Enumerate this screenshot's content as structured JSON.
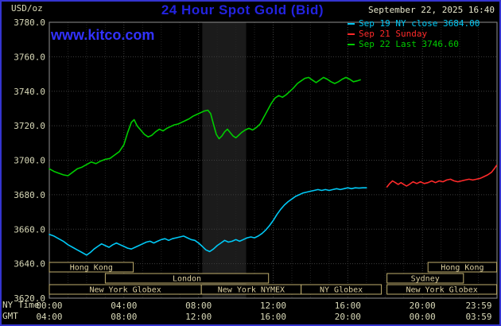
{
  "header": {
    "units_label": "USD/oz",
    "title": "24 Hour Spot Gold (Bid)",
    "datetime": "September 22, 2025 16:40",
    "watermark": "www.kitco.com"
  },
  "legend": {
    "items": [
      {
        "label": "Sep 19 NY close 3684.00",
        "color": "#00c8f5"
      },
      {
        "label": "Sep 21 Sunday",
        "color": "#ff2a2a"
      },
      {
        "label": "Sep 22 Last 3746.60",
        "color": "#00cc00"
      }
    ]
  },
  "axes": {
    "x_rows": [
      {
        "label": "NY Time",
        "ticks": [
          "00:00",
          "04:00",
          "08:00",
          "12:00",
          "16:00",
          "20:00",
          "23:59"
        ]
      },
      {
        "label": "GMT",
        "ticks": [
          "04:00",
          "08:00",
          "12:00",
          "16:00",
          "20:00",
          "00:00",
          "03:59"
        ]
      }
    ],
    "y_tick_labels": [
      "3780.0",
      "3760.0",
      "3740.0",
      "3720.0",
      "3700.0",
      "3680.0",
      "3660.0",
      "3640.0",
      "3620.0"
    ]
  },
  "chart_data": {
    "type": "line",
    "title": "24 Hour Spot Gold (Bid)",
    "ylabel": "USD/oz",
    "x_unit": "hours, NY time",
    "xlim": [
      0,
      24
    ],
    "ylim": [
      3620,
      3780
    ],
    "y_tick_step": 20,
    "x_tick_hours": [
      0,
      4,
      8,
      12,
      16,
      20,
      23.983
    ],
    "grid": true,
    "shaded_band_hours": [
      8.2,
      10.55
    ],
    "series": [
      {
        "name": "Sep 19 NY close 3684.00",
        "color": "#00c8f5",
        "points": [
          [
            0,
            3657
          ],
          [
            0.25,
            3656
          ],
          [
            0.5,
            3654.5
          ],
          [
            0.75,
            3653
          ],
          [
            1,
            3651
          ],
          [
            1.25,
            3649.5
          ],
          [
            1.5,
            3648
          ],
          [
            1.75,
            3646.5
          ],
          [
            2,
            3645
          ],
          [
            2.2,
            3646.5
          ],
          [
            2.4,
            3648.5
          ],
          [
            2.6,
            3650
          ],
          [
            2.8,
            3651.5
          ],
          [
            3,
            3650.5
          ],
          [
            3.2,
            3649.5
          ],
          [
            3.4,
            3651
          ],
          [
            3.6,
            3652
          ],
          [
            3.8,
            3651
          ],
          [
            4,
            3650
          ],
          [
            4.2,
            3649
          ],
          [
            4.4,
            3648.5
          ],
          [
            4.6,
            3649.5
          ],
          [
            4.8,
            3650.5
          ],
          [
            5,
            3651.5
          ],
          [
            5.2,
            3652.5
          ],
          [
            5.4,
            3653
          ],
          [
            5.6,
            3652
          ],
          [
            5.8,
            3653
          ],
          [
            6,
            3654
          ],
          [
            6.2,
            3654.5
          ],
          [
            6.4,
            3653.5
          ],
          [
            6.6,
            3654.5
          ],
          [
            6.8,
            3655
          ],
          [
            7,
            3655.5
          ],
          [
            7.2,
            3656
          ],
          [
            7.4,
            3655
          ],
          [
            7.6,
            3654
          ],
          [
            7.8,
            3653.5
          ],
          [
            8,
            3652
          ],
          [
            8.2,
            3650
          ],
          [
            8.4,
            3648
          ],
          [
            8.6,
            3647
          ],
          [
            8.8,
            3648.5
          ],
          [
            9,
            3650.5
          ],
          [
            9.2,
            3652
          ],
          [
            9.4,
            3653.5
          ],
          [
            9.6,
            3652.5
          ],
          [
            9.8,
            3653
          ],
          [
            10,
            3654
          ],
          [
            10.2,
            3653
          ],
          [
            10.4,
            3654
          ],
          [
            10.6,
            3655
          ],
          [
            10.8,
            3655.5
          ],
          [
            11,
            3655
          ],
          [
            11.2,
            3656
          ],
          [
            11.4,
            3657.5
          ],
          [
            11.6,
            3659.5
          ],
          [
            11.8,
            3662
          ],
          [
            12,
            3665
          ],
          [
            12.2,
            3668.5
          ],
          [
            12.4,
            3671.5
          ],
          [
            12.6,
            3674
          ],
          [
            12.8,
            3676
          ],
          [
            13,
            3677.5
          ],
          [
            13.2,
            3679
          ],
          [
            13.4,
            3680
          ],
          [
            13.6,
            3681
          ],
          [
            13.8,
            3681.5
          ],
          [
            14,
            3682
          ],
          [
            14.2,
            3682.5
          ],
          [
            14.4,
            3683
          ],
          [
            14.6,
            3682.5
          ],
          [
            14.8,
            3683
          ],
          [
            15,
            3682.5
          ],
          [
            15.2,
            3683
          ],
          [
            15.4,
            3683.5
          ],
          [
            15.6,
            3683
          ],
          [
            15.8,
            3683.5
          ],
          [
            16,
            3684
          ],
          [
            16.2,
            3683.5
          ],
          [
            16.4,
            3684
          ],
          [
            16.6,
            3683.8
          ],
          [
            16.8,
            3684
          ],
          [
            17,
            3684
          ]
        ]
      },
      {
        "name": "Sep 21 Sunday",
        "color": "#ff2a2a",
        "points": [
          [
            18.1,
            3684.5
          ],
          [
            18.25,
            3686.5
          ],
          [
            18.4,
            3688
          ],
          [
            18.55,
            3687
          ],
          [
            18.7,
            3686
          ],
          [
            18.85,
            3687
          ],
          [
            19,
            3686
          ],
          [
            19.15,
            3685
          ],
          [
            19.3,
            3686
          ],
          [
            19.5,
            3687.5
          ],
          [
            19.7,
            3686.5
          ],
          [
            19.9,
            3687.5
          ],
          [
            20.1,
            3686.5
          ],
          [
            20.3,
            3687
          ],
          [
            20.5,
            3688
          ],
          [
            20.7,
            3687
          ],
          [
            20.9,
            3688
          ],
          [
            21.1,
            3687.5
          ],
          [
            21.3,
            3688.5
          ],
          [
            21.5,
            3689
          ],
          [
            21.7,
            3688
          ],
          [
            21.9,
            3687.5
          ],
          [
            22.1,
            3688
          ],
          [
            22.3,
            3688.5
          ],
          [
            22.5,
            3689
          ],
          [
            22.7,
            3688.5
          ],
          [
            22.9,
            3689
          ],
          [
            23.1,
            3689.5
          ],
          [
            23.3,
            3690.5
          ],
          [
            23.5,
            3691.5
          ],
          [
            23.7,
            3693
          ],
          [
            23.85,
            3695
          ],
          [
            23.98,
            3697
          ]
        ]
      },
      {
        "name": "Sep 22 Last 3746.60",
        "color": "#00cc00",
        "points": [
          [
            0,
            3695
          ],
          [
            0.25,
            3693.5
          ],
          [
            0.5,
            3692.5
          ],
          [
            0.75,
            3691.5
          ],
          [
            1,
            3691
          ],
          [
            1.25,
            3693
          ],
          [
            1.5,
            3695
          ],
          [
            1.75,
            3696
          ],
          [
            2,
            3697.5
          ],
          [
            2.25,
            3699
          ],
          [
            2.5,
            3698
          ],
          [
            2.75,
            3699.5
          ],
          [
            3,
            3700.5
          ],
          [
            3.25,
            3701
          ],
          [
            3.5,
            3703
          ],
          [
            3.75,
            3705
          ],
          [
            4,
            3709
          ],
          [
            4.2,
            3716
          ],
          [
            4.4,
            3722
          ],
          [
            4.55,
            3723.5
          ],
          [
            4.7,
            3720
          ],
          [
            4.9,
            3717.5
          ],
          [
            5.1,
            3715
          ],
          [
            5.3,
            3713.5
          ],
          [
            5.5,
            3714.5
          ],
          [
            5.7,
            3716.5
          ],
          [
            5.9,
            3718
          ],
          [
            6.1,
            3717
          ],
          [
            6.3,
            3718.5
          ],
          [
            6.5,
            3719.5
          ],
          [
            6.7,
            3720.5
          ],
          [
            6.9,
            3721
          ],
          [
            7.1,
            3722
          ],
          [
            7.3,
            3723
          ],
          [
            7.5,
            3724
          ],
          [
            7.7,
            3725.5
          ],
          [
            7.9,
            3726.5
          ],
          [
            8.1,
            3727.5
          ],
          [
            8.3,
            3728.5
          ],
          [
            8.5,
            3729
          ],
          [
            8.65,
            3727
          ],
          [
            8.8,
            3721
          ],
          [
            8.95,
            3715
          ],
          [
            9.1,
            3712.5
          ],
          [
            9.25,
            3714
          ],
          [
            9.4,
            3716.5
          ],
          [
            9.55,
            3718
          ],
          [
            9.7,
            3716
          ],
          [
            9.85,
            3714
          ],
          [
            10,
            3713
          ],
          [
            10.15,
            3714.5
          ],
          [
            10.3,
            3716
          ],
          [
            10.5,
            3717.5
          ],
          [
            10.7,
            3718.5
          ],
          [
            10.9,
            3717.5
          ],
          [
            11.1,
            3719
          ],
          [
            11.3,
            3721
          ],
          [
            11.5,
            3725
          ],
          [
            11.7,
            3729
          ],
          [
            11.9,
            3733
          ],
          [
            12.1,
            3736
          ],
          [
            12.3,
            3737.5
          ],
          [
            12.5,
            3736.5
          ],
          [
            12.7,
            3738
          ],
          [
            12.9,
            3740
          ],
          [
            13.1,
            3742
          ],
          [
            13.3,
            3744.5
          ],
          [
            13.5,
            3746
          ],
          [
            13.7,
            3747.5
          ],
          [
            13.9,
            3748
          ],
          [
            14.1,
            3746.5
          ],
          [
            14.3,
            3745
          ],
          [
            14.5,
            3746.5
          ],
          [
            14.7,
            3748
          ],
          [
            14.9,
            3747
          ],
          [
            15.1,
            3745.5
          ],
          [
            15.3,
            3744.5
          ],
          [
            15.5,
            3745.5
          ],
          [
            15.7,
            3747
          ],
          [
            15.9,
            3748
          ],
          [
            16.1,
            3747
          ],
          [
            16.3,
            3745.5
          ],
          [
            16.5,
            3746
          ],
          [
            16.67,
            3746.6
          ]
        ]
      }
    ],
    "sessions": [
      {
        "row": 0,
        "label": "Hong Kong",
        "start": 0,
        "end": 4.5
      },
      {
        "row": 0,
        "label": "Hong Kong",
        "start": 20.3,
        "end": 23.983
      },
      {
        "row": 1,
        "label": "London",
        "start": 3.0,
        "end": 11.75
      },
      {
        "row": 1,
        "label": "Sydney",
        "start": 18.1,
        "end": 22.2
      },
      {
        "row": 2,
        "label": "New York Globex",
        "start": 0,
        "end": 8.15
      },
      {
        "row": 2,
        "label": "New York NYMEX",
        "start": 8.15,
        "end": 13.5
      },
      {
        "row": 2,
        "label": "NY Globex",
        "start": 13.5,
        "end": 17.8
      },
      {
        "row": 2,
        "label": "New York Globex",
        "start": 18.1,
        "end": 23.983
      }
    ]
  }
}
